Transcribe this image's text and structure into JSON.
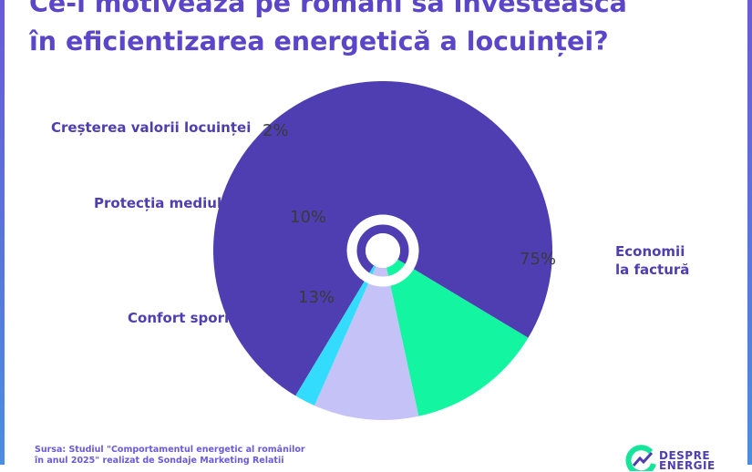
{
  "title": {
    "line1": "Ce-i motivează pe români să investească",
    "line2": "în eficientizarea energetică a locuinței?"
  },
  "chart_data": {
    "type": "pie",
    "variant": "donut",
    "categories": [
      "Economii la factură",
      "Confort sporit",
      "Protecția mediului",
      "Creșterea valorii locuinței"
    ],
    "values": [
      75,
      13,
      10,
      2
    ],
    "value_labels": [
      "75%",
      "13%",
      "10%",
      "2%"
    ],
    "label_lines": [
      [
        "Economii",
        "la factură"
      ],
      [
        "Confort sporit"
      ],
      [
        "Protecția mediului"
      ],
      [
        "Creșterea valorii locuinței"
      ]
    ],
    "colors": [
      "#4f3eb2",
      "#14f5a2",
      "#c4c2f7",
      "#33dcfc"
    ]
  },
  "source": {
    "line1": "Sursa: Studiul \"Comportamentul energetic al românilor",
    "line2": "în anul 2025\" realizat de Sondaje Marketing Relatii"
  },
  "logo": {
    "line1": "DESPRE",
    "line2": "ENERGIE"
  }
}
